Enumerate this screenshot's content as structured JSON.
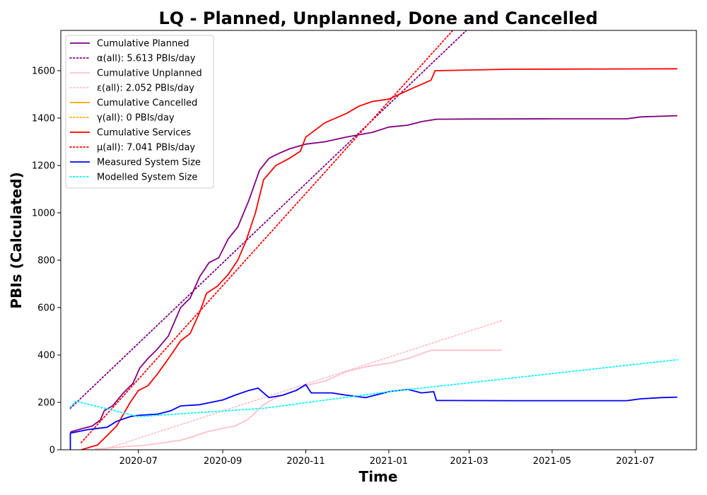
{
  "chart_data": {
    "type": "line",
    "title": "LQ - Planned, Unplanned, Done  and Cancelled",
    "xlabel": "Time",
    "ylabel": "PBIs (Calculated)",
    "xlim": [
      "2020-05-05",
      "2021-08-15"
    ],
    "ylim": [
      0,
      1770
    ],
    "xticks": [
      "2020-07",
      "2020-09",
      "2020-11",
      "2021-01",
      "2021-03",
      "2021-05",
      "2021-07"
    ],
    "yticks": [
      0,
      200,
      400,
      600,
      800,
      1000,
      1200,
      1400,
      1600
    ],
    "grid": false,
    "legend_position": "top-left",
    "series": [
      {
        "name": "Cumulative Planned",
        "color": "#800080",
        "style": "solid",
        "points": [
          [
            "2020-05-12",
            75
          ],
          [
            "2020-05-20",
            88
          ],
          [
            "2020-05-28",
            100
          ],
          [
            "2020-06-03",
            125
          ],
          [
            "2020-06-06",
            165
          ],
          [
            "2020-06-12",
            185
          ],
          [
            "2020-06-20",
            240
          ],
          [
            "2020-06-27",
            280
          ],
          [
            "2020-07-02",
            345
          ],
          [
            "2020-07-08",
            385
          ],
          [
            "2020-07-15",
            425
          ],
          [
            "2020-07-23",
            480
          ],
          [
            "2020-08-01",
            600
          ],
          [
            "2020-08-08",
            640
          ],
          [
            "2020-08-15",
            730
          ],
          [
            "2020-08-22",
            790
          ],
          [
            "2020-08-29",
            810
          ],
          [
            "2020-09-05",
            890
          ],
          [
            "2020-09-12",
            940
          ],
          [
            "2020-09-20",
            1050
          ],
          [
            "2020-09-28",
            1180
          ],
          [
            "2020-10-05",
            1230
          ],
          [
            "2020-10-12",
            1250
          ],
          [
            "2020-10-20",
            1270
          ],
          [
            "2020-11-01",
            1290
          ],
          [
            "2020-11-15",
            1300
          ],
          [
            "2020-12-01",
            1320
          ],
          [
            "2020-12-20",
            1340
          ],
          [
            "2021-01-01",
            1362
          ],
          [
            "2021-01-15",
            1370
          ],
          [
            "2021-01-25",
            1385
          ],
          [
            "2021-02-05",
            1395
          ],
          [
            "2021-03-01",
            1396
          ],
          [
            "2021-05-01",
            1397
          ],
          [
            "2021-06-25",
            1397
          ],
          [
            "2021-07-05",
            1405
          ],
          [
            "2021-08-01",
            1410
          ]
        ]
      },
      {
        "name": "α(all): 5.613 PBIs/day",
        "color": "#800080",
        "style": "dotted",
        "points": [
          [
            "2020-05-12",
            175
          ],
          [
            "2021-02-27",
            1770
          ]
        ]
      },
      {
        "name": "Cumulative Unplanned",
        "color": "#ffc0cb",
        "style": "solid",
        "points": [
          [
            "2020-05-30",
            3
          ],
          [
            "2020-06-15",
            10
          ],
          [
            "2020-06-25",
            15
          ],
          [
            "2020-07-05",
            18
          ],
          [
            "2020-07-20",
            30
          ],
          [
            "2020-08-01",
            40
          ],
          [
            "2020-08-10",
            55
          ],
          [
            "2020-08-20",
            75
          ],
          [
            "2020-09-01",
            90
          ],
          [
            "2020-09-10",
            100
          ],
          [
            "2020-09-20",
            130
          ],
          [
            "2020-10-01",
            190
          ],
          [
            "2020-10-10",
            220
          ],
          [
            "2020-10-20",
            240
          ],
          [
            "2020-11-01",
            270
          ],
          [
            "2020-11-15",
            290
          ],
          [
            "2020-12-01",
            330
          ],
          [
            "2020-12-15",
            350
          ],
          [
            "2021-01-01",
            365
          ],
          [
            "2021-01-15",
            385
          ],
          [
            "2021-02-01",
            420
          ],
          [
            "2021-03-25",
            420
          ]
        ]
      },
      {
        "name": "ε(all): 2.052 PBIs/day",
        "color": "#ffc0cb",
        "style": "dotted",
        "points": [
          [
            "2020-06-05",
            0
          ],
          [
            "2021-03-25",
            545
          ]
        ]
      },
      {
        "name": "Cumulative Cancelled",
        "color": "#ffa500",
        "style": "solid",
        "points": []
      },
      {
        "name": "γ(all): 0 PBIs/day",
        "color": "#ffa500",
        "style": "dotted",
        "points": []
      },
      {
        "name": "Cumulative Services",
        "color": "#ff0000",
        "style": "solid",
        "points": [
          [
            "2020-05-20",
            0
          ],
          [
            "2020-06-01",
            20
          ],
          [
            "2020-06-08",
            60
          ],
          [
            "2020-06-15",
            100
          ],
          [
            "2020-06-20",
            150
          ],
          [
            "2020-06-25",
            200
          ],
          [
            "2020-07-01",
            250
          ],
          [
            "2020-07-08",
            270
          ],
          [
            "2020-07-15",
            320
          ],
          [
            "2020-07-25",
            400
          ],
          [
            "2020-08-01",
            460
          ],
          [
            "2020-08-08",
            490
          ],
          [
            "2020-08-15",
            580
          ],
          [
            "2020-08-20",
            660
          ],
          [
            "2020-08-28",
            690
          ],
          [
            "2020-09-05",
            740
          ],
          [
            "2020-09-12",
            800
          ],
          [
            "2020-09-18",
            880
          ],
          [
            "2020-09-25",
            1000
          ],
          [
            "2020-10-01",
            1140
          ],
          [
            "2020-10-10",
            1200
          ],
          [
            "2020-10-20",
            1230
          ],
          [
            "2020-10-28",
            1260
          ],
          [
            "2020-11-01",
            1320
          ],
          [
            "2020-11-15",
            1380
          ],
          [
            "2020-12-01",
            1420
          ],
          [
            "2020-12-10",
            1450
          ],
          [
            "2020-12-20",
            1470
          ],
          [
            "2021-01-01",
            1480
          ],
          [
            "2021-01-20",
            1530
          ],
          [
            "2021-02-01",
            1560
          ],
          [
            "2021-02-04",
            1600
          ],
          [
            "2021-04-01",
            1606
          ],
          [
            "2021-08-01",
            1608
          ]
        ]
      },
      {
        "name": "μ(all): 7.041 PBIs/day",
        "color": "#ff0000",
        "style": "dotted",
        "points": [
          [
            "2020-05-20",
            30
          ],
          [
            "2021-02-17",
            1770
          ]
        ]
      },
      {
        "name": "Measured System Size",
        "color": "#0000ff",
        "style": "solid",
        "points": [
          [
            "2020-05-12",
            0
          ],
          [
            "2020-05-12",
            70
          ],
          [
            "2020-05-25",
            85
          ],
          [
            "2020-06-08",
            95
          ],
          [
            "2020-06-15",
            120
          ],
          [
            "2020-06-25",
            140
          ],
          [
            "2020-07-01",
            145
          ],
          [
            "2020-07-15",
            150
          ],
          [
            "2020-07-25",
            165
          ],
          [
            "2020-08-01",
            185
          ],
          [
            "2020-08-15",
            190
          ],
          [
            "2020-09-01",
            210
          ],
          [
            "2020-09-10",
            230
          ],
          [
            "2020-09-20",
            250
          ],
          [
            "2020-09-27",
            260
          ],
          [
            "2020-10-05",
            220
          ],
          [
            "2020-10-15",
            230
          ],
          [
            "2020-10-25",
            250
          ],
          [
            "2020-11-01",
            275
          ],
          [
            "2020-11-05",
            240
          ],
          [
            "2020-11-20",
            240
          ],
          [
            "2020-12-01",
            230
          ],
          [
            "2020-12-15",
            220
          ],
          [
            "2021-01-01",
            245
          ],
          [
            "2021-01-15",
            255
          ],
          [
            "2021-01-25",
            240
          ],
          [
            "2021-02-03",
            245
          ],
          [
            "2021-02-05",
            208
          ],
          [
            "2021-04-01",
            207
          ],
          [
            "2021-06-25",
            207
          ],
          [
            "2021-07-05",
            215
          ],
          [
            "2021-07-20",
            220
          ],
          [
            "2021-08-01",
            222
          ]
        ]
      },
      {
        "name": "Modelled System Size",
        "color": "#00ffff",
        "style": "dotted",
        "points": [
          [
            "2020-05-12",
            180
          ],
          [
            "2020-05-16",
            205
          ],
          [
            "2020-07-01",
            140
          ],
          [
            "2020-10-01",
            175
          ],
          [
            "2021-01-01",
            245
          ],
          [
            "2021-08-01",
            380
          ]
        ]
      }
    ]
  }
}
